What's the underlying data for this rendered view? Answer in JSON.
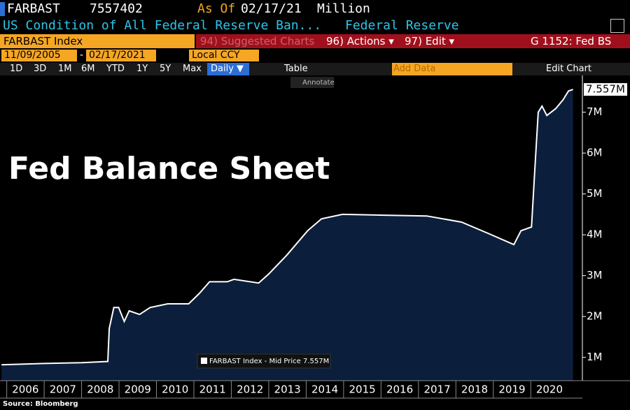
{
  "header": {
    "ticker": "FARBAST",
    "last_value": 7557402,
    "as_of_label": "As Of",
    "as_of_date": "02/17/21",
    "unit": "Million",
    "description": "US Condition of All Federal Reserve Ban...",
    "source_name": "Federal Reserve"
  },
  "toolbar": {
    "security": "FARBAST Index",
    "suggested_charts": "94) Suggested Charts",
    "actions": "96) Actions ▾",
    "edit": "97) Edit ▾",
    "chart_code": "G 1152: Fed BS",
    "start_date": "11/09/2005",
    "date_separator": "-",
    "end_date": "02/17/2021",
    "currency": "Local CCY",
    "ranges": [
      "1D",
      "3D",
      "1M",
      "6M",
      "YTD",
      "1Y",
      "5Y",
      "Max"
    ],
    "frequency": "Daily ▼",
    "table": "Table",
    "add_data": "Add Data",
    "edit_chart": "Edit Chart",
    "annotate": "Annotate"
  },
  "chart_data": {
    "type": "area",
    "title": "Fed Balance Sheet",
    "source": "Source: Bloomberg",
    "x": [
      2005.86,
      2007.0,
      2008.0,
      2008.7,
      2008.74,
      2008.86,
      2008.99,
      2009.14,
      2009.27,
      2009.55,
      2009.83,
      2010.3,
      2010.86,
      2011.14,
      2011.42,
      2011.89,
      2012.07,
      2012.73,
      2013.0,
      2013.48,
      2014.04,
      2014.41,
      2014.97,
      2016.1,
      2017.22,
      2018.15,
      2018.9,
      2019.55,
      2019.74,
      2020.02,
      2020.1,
      2020.2,
      2020.3,
      2020.43,
      2020.67,
      2020.86,
      2021.01,
      2021.13
    ],
    "series": [
      {
        "name": "FARBAST Index - Mid Price 7.557M",
        "color": "#ffffff",
        "fill": "#0b1f3c",
        "values": [
          0.82,
          0.85,
          0.87,
          0.9,
          1.71,
          2.22,
          2.22,
          1.88,
          2.14,
          2.05,
          2.22,
          2.31,
          2.31,
          2.56,
          2.85,
          2.85,
          2.91,
          2.82,
          3.04,
          3.5,
          4.1,
          4.39,
          4.5,
          4.48,
          4.46,
          4.31,
          4.02,
          3.76,
          4.1,
          4.19,
          5.47,
          7.0,
          7.15,
          6.92,
          7.09,
          7.3,
          7.52,
          7.557
        ]
      }
    ],
    "last_value": {
      "value": 7.557,
      "label": "7.557M"
    },
    "xlim": [
      2005.82,
      2021.38
    ],
    "xticks": [
      2006,
      2007,
      2008,
      2009,
      2010,
      2011,
      2012,
      2013,
      2014,
      2015,
      2016,
      2017,
      2018,
      2019,
      2020
    ],
    "ylim": [
      0.43,
      7.9
    ],
    "yticks": [
      {
        "value": 1,
        "label": "1M"
      },
      {
        "value": 2,
        "label": "2M"
      },
      {
        "value": 3,
        "label": "3M"
      },
      {
        "value": 4,
        "label": "4M"
      },
      {
        "value": 5,
        "label": "5M"
      },
      {
        "value": 6,
        "label": "6M"
      },
      {
        "value": 7,
        "label": "7M"
      }
    ],
    "grid": false
  }
}
